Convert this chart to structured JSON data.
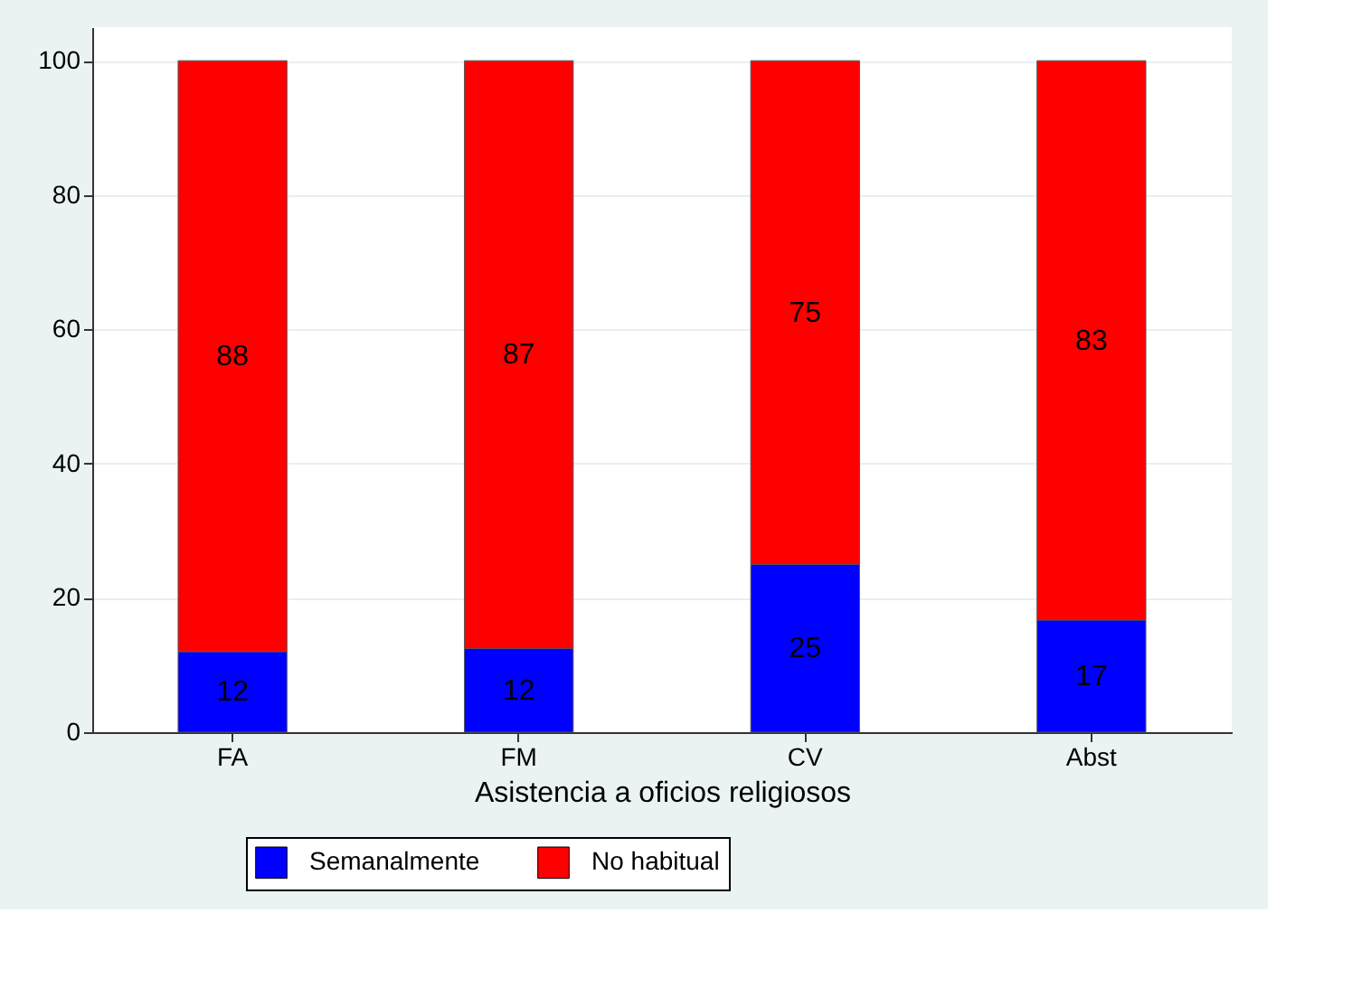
{
  "chart_data": {
    "type": "bar",
    "stacked": true,
    "xlabel": "Asistencia a oficios religiosos",
    "categories": [
      "FA",
      "FM",
      "CV",
      "Abst"
    ],
    "series": [
      {
        "name": "Semanalmente",
        "color": "#0000ff",
        "values": [
          12.0,
          12.5,
          25.0,
          16.7
        ],
        "value_labels": [
          "12",
          "12",
          "25",
          "17"
        ]
      },
      {
        "name": "No habitual",
        "color": "#ff0000",
        "values": [
          88.0,
          87.5,
          75.0,
          83.3
        ],
        "value_labels": [
          "88",
          "87",
          "75",
          "83"
        ]
      }
    ],
    "ylim": [
      0,
      105
    ],
    "yticks": [
      0,
      20,
      40,
      60,
      80,
      100
    ],
    "grid": "y",
    "legend": "bottom"
  }
}
